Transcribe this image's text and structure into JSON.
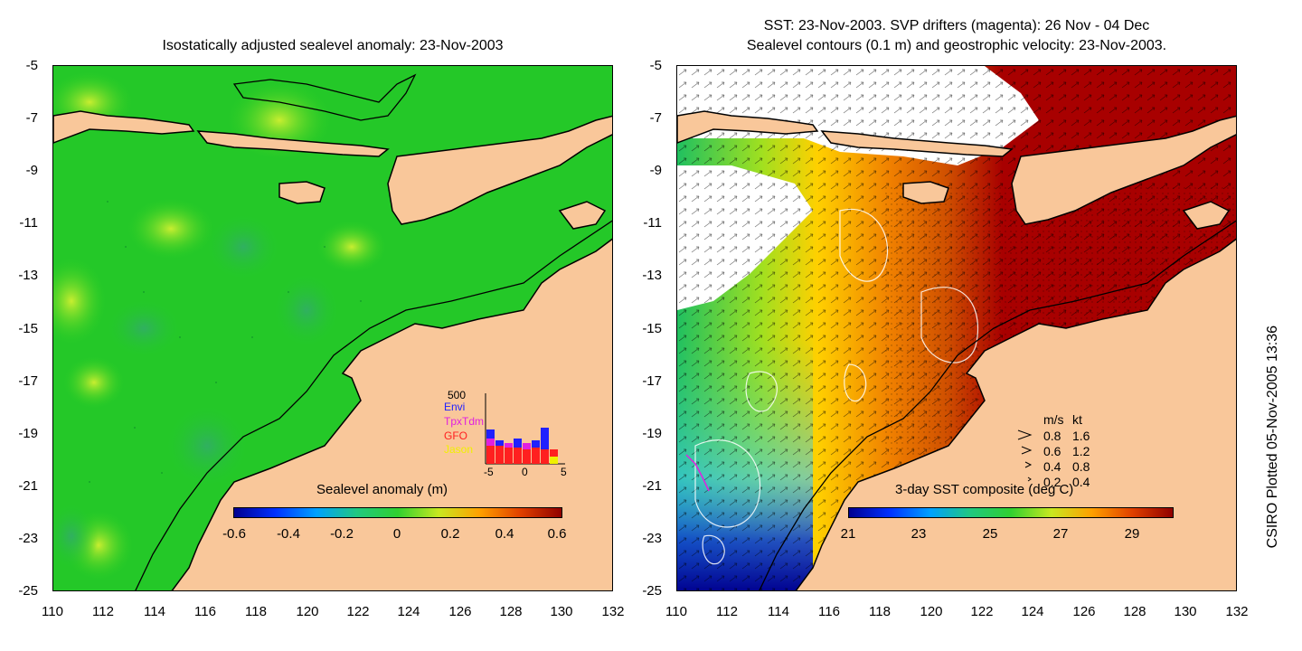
{
  "left_panel": {
    "title": "Isostatically adjusted sealevel anomaly: 23-Nov-2003",
    "colorbar_title": "Sealevel anomaly (m)",
    "colorbar_ticks": [
      "-0.6",
      "-0.4",
      "-0.2",
      "0",
      "0.2",
      "0.4",
      "0.6"
    ],
    "histogram": {
      "ymax_label": "500",
      "xticks": [
        "-5",
        "0",
        "5"
      ],
      "satellites": [
        {
          "name": "Envi",
          "color": "#2020ff"
        },
        {
          "name": "TpxTdm",
          "color": "#e020e0"
        },
        {
          "name": "GFO",
          "color": "#ff2020"
        },
        {
          "name": "Jason",
          "color": "#f0f000"
        }
      ]
    }
  },
  "right_panel": {
    "title_line1": "SST: 23-Nov-2003. SVP drifters (magenta): 26 Nov - 04 Dec",
    "title_line2": "Sealevel contours (0.1 m) and geostrophic velocity: 23-Nov-2003.",
    "colorbar_title": "3-day SST composite (deg C)",
    "colorbar_ticks": [
      "21",
      "23",
      "25",
      "27",
      "29"
    ],
    "velocity_legend": {
      "header_ms": "m/s",
      "header_kt": "kt",
      "rows": [
        {
          "ms": "0.8",
          "kt": "1.6"
        },
        {
          "ms": "0.6",
          "kt": "1.2"
        },
        {
          "ms": "0.4",
          "kt": "0.8"
        },
        {
          "ms": "0.2",
          "kt": "0.4"
        }
      ]
    }
  },
  "axes": {
    "y_ticks": [
      "-5",
      "-7",
      "-9",
      "-11",
      "-13",
      "-15",
      "-17",
      "-19",
      "-21",
      "-23",
      "-25"
    ],
    "x_ticks": [
      "110",
      "112",
      "114",
      "116",
      "118",
      "120",
      "122",
      "124",
      "126",
      "128",
      "130",
      "132"
    ]
  },
  "side_caption": "CSIRO Plotted 05-Nov-2005 13:36",
  "colors": {
    "land": "#f9c79a",
    "ssh_ocean": "#1ed01e",
    "sst_warm": "#a80000"
  }
}
